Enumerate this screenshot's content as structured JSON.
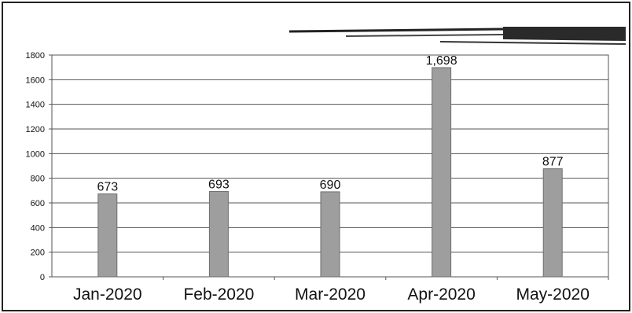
{
  "chart_data": {
    "type": "bar",
    "categories": [
      "Jan-2020",
      "Feb-2020",
      "Mar-2020",
      "Apr-2020",
      "May-2020"
    ],
    "values": [
      673,
      693,
      690,
      1698,
      877
    ],
    "data_labels": [
      "673",
      "693",
      "690",
      "1,698",
      "877"
    ],
    "ylim": [
      0,
      1800
    ],
    "yticks": [
      0,
      200,
      400,
      600,
      800,
      1000,
      1200,
      1400,
      1600,
      1800
    ],
    "grid": true,
    "legend": "none",
    "bar_color": "#9e9e9e",
    "bar_edge_color": "#6e6e6e"
  }
}
